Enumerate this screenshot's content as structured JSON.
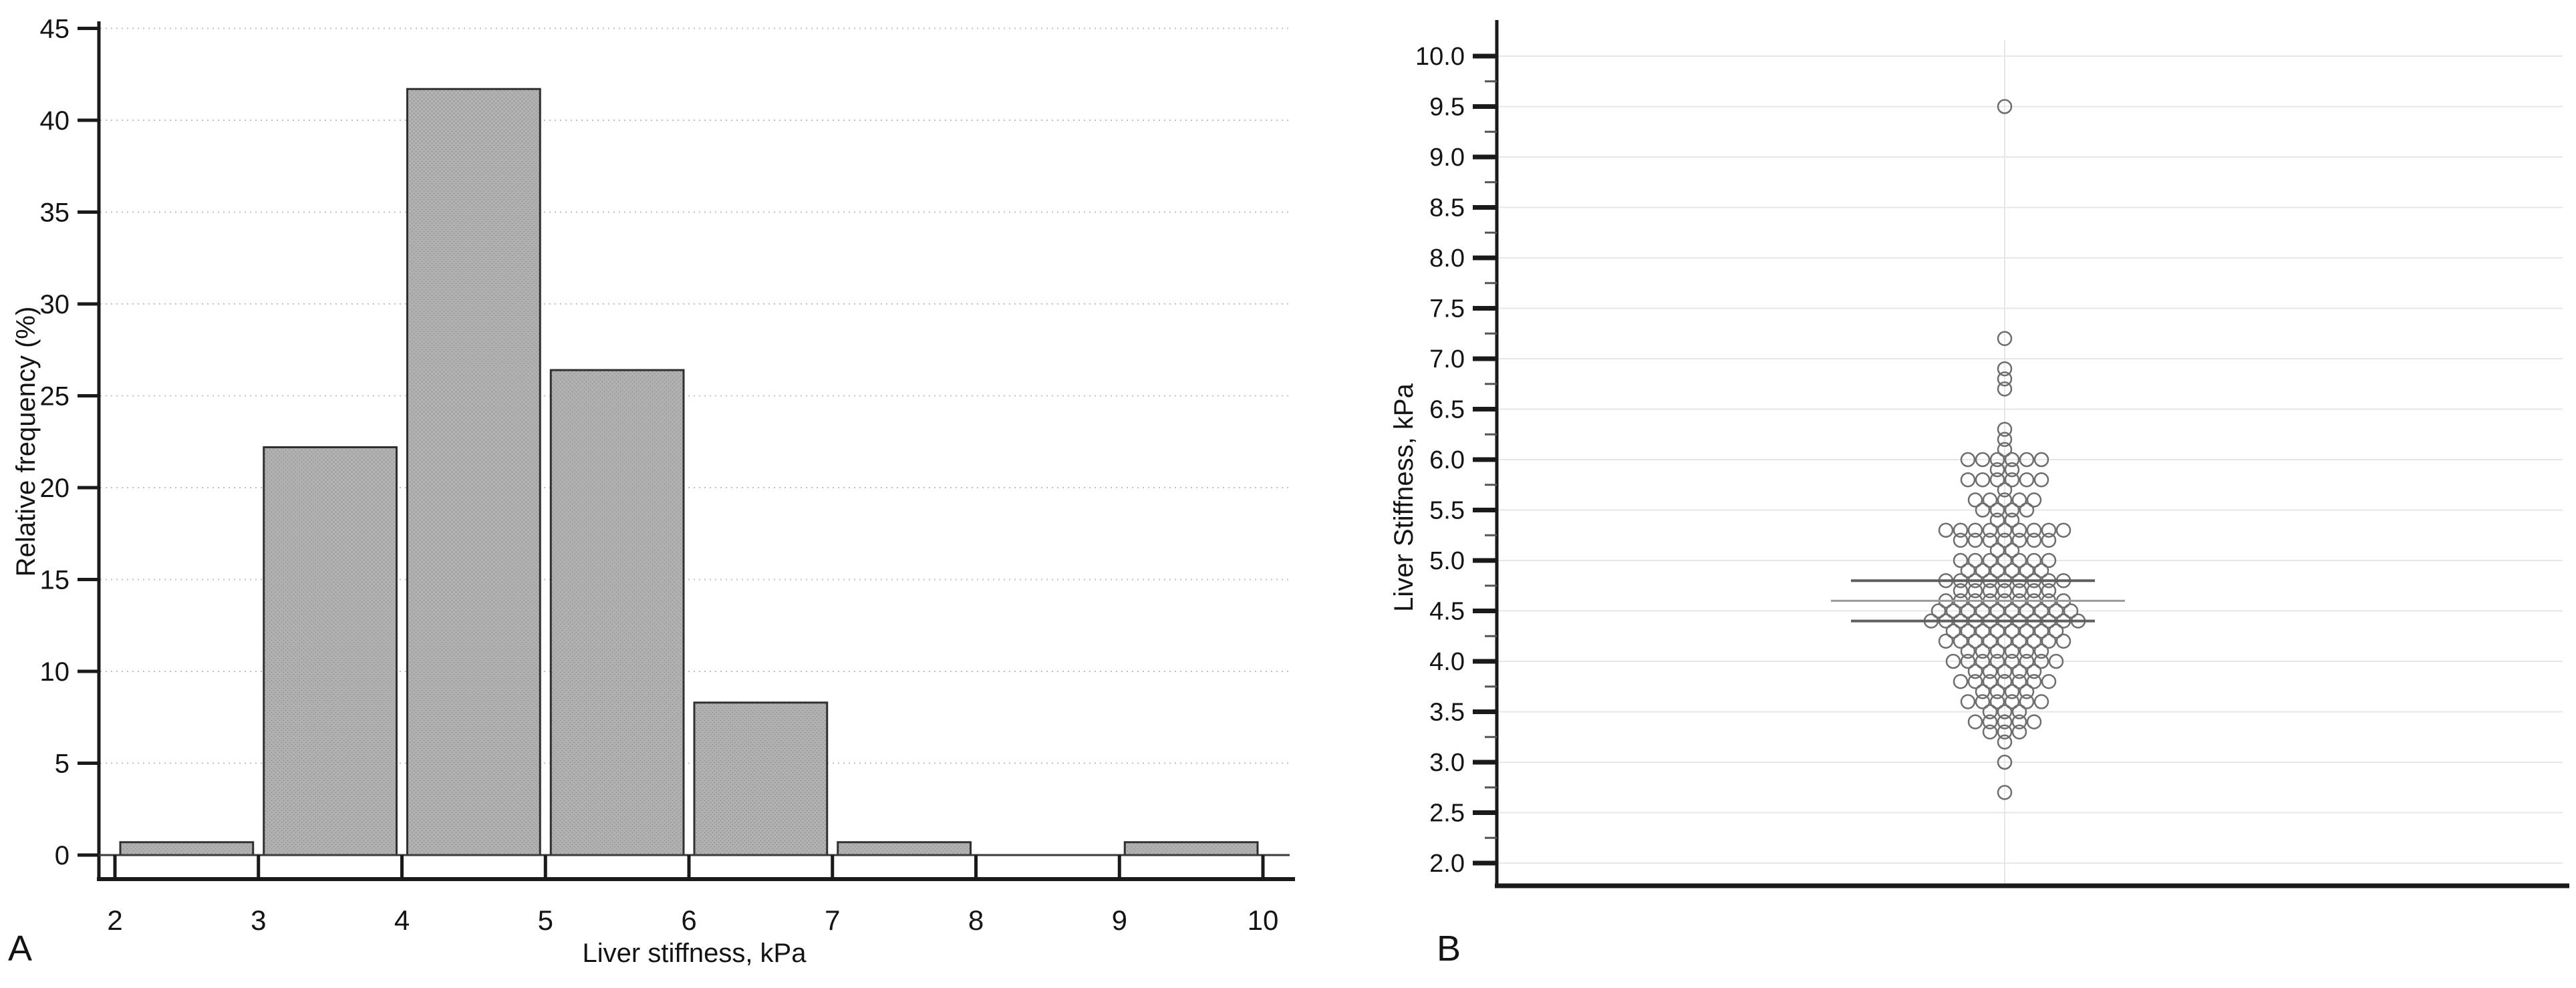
{
  "figure": {
    "background": "#ffffff",
    "text_color": "#141414",
    "axis_color": "#1a1a1a"
  },
  "panel_a": {
    "label": "A",
    "ylabel": "Relative frequency (%)",
    "xlabel": "Liver stiffness, kPa"
  },
  "panel_b": {
    "label": "B",
    "ylabel": "Liver Stiffness, kPa"
  },
  "chart_data": [
    {
      "type": "bar",
      "panel": "A",
      "title": "",
      "xlabel": "Liver stiffness, kPa",
      "ylabel": "Relative frequency (%)",
      "bin_edges": [
        2,
        3,
        4,
        5,
        6,
        7,
        8,
        9,
        10
      ],
      "values": [
        0.7,
        22.2,
        41.7,
        26.4,
        8.3,
        0.7,
        0,
        0.7
      ],
      "xticks": [
        2,
        3,
        4,
        5,
        6,
        7,
        8,
        9,
        10
      ],
      "xtick_labels": [
        "2",
        "3",
        "4",
        "5",
        "6",
        "7",
        "8",
        "9",
        "10"
      ],
      "yticks": [
        0,
        5,
        10,
        15,
        20,
        25,
        30,
        35,
        40,
        45
      ],
      "ytick_labels": [
        "0",
        "5",
        "10",
        "15",
        "20",
        "25",
        "30",
        "35",
        "40",
        "45"
      ],
      "xlim": [
        2,
        10
      ],
      "ylim": [
        0,
        45.5
      ],
      "grid": "horizontal dotted",
      "gridline_color": "#bfbfbf",
      "bar_fill": "#b2b2b2",
      "bar_stipple": "#949494",
      "bar_border": "#303030",
      "legend": "none"
    },
    {
      "type": "scatter",
      "subtype": "beeswarm",
      "panel": "B",
      "title": "",
      "xlabel": "",
      "ylabel": "Liver Stiffness, kPa",
      "ylim": [
        2.0,
        10.0
      ],
      "yticks": [
        2.0,
        2.5,
        3.0,
        3.5,
        4.0,
        4.5,
        5.0,
        5.5,
        6.0,
        6.5,
        7.0,
        7.5,
        8.0,
        8.5,
        9.0,
        9.5,
        10.0
      ],
      "ytick_labels": [
        "2.0",
        "2.5",
        "3.0",
        "3.5",
        "4.0",
        "4.5",
        "5.0",
        "5.5",
        "6.0",
        "6.5",
        "7.0",
        "7.5",
        "8.0",
        "8.5",
        "9.0",
        "9.5",
        "10.0"
      ],
      "yminor_ticks": [
        2.25,
        2.75,
        3.25,
        3.75,
        4.25,
        4.75,
        5.25,
        5.75,
        6.25,
        6.75,
        7.25,
        7.75,
        8.25,
        8.75,
        9.25,
        9.75
      ],
      "grid": "horizontal light + vertical center line",
      "gridline_color": "#e7e7e7",
      "marker": "open-circle",
      "marker_color": "#6e6e6e",
      "points": [
        {
          "value": 9.5,
          "count": 1
        },
        {
          "value": 7.2,
          "count": 1
        },
        {
          "value": 6.9,
          "count": 1
        },
        {
          "value": 6.8,
          "count": 1
        },
        {
          "value": 6.7,
          "count": 1
        },
        {
          "value": 6.3,
          "count": 1
        },
        {
          "value": 6.2,
          "count": 1
        },
        {
          "value": 6.1,
          "count": 1
        },
        {
          "value": 6.0,
          "count": 6
        },
        {
          "value": 5.9,
          "count": 2
        },
        {
          "value": 5.8,
          "count": 6
        },
        {
          "value": 5.7,
          "count": 1
        },
        {
          "value": 5.6,
          "count": 5
        },
        {
          "value": 5.5,
          "count": 4
        },
        {
          "value": 5.4,
          "count": 2
        },
        {
          "value": 5.3,
          "count": 9
        },
        {
          "value": 5.2,
          "count": 7
        },
        {
          "value": 5.1,
          "count": 2
        },
        {
          "value": 5.0,
          "count": 7
        },
        {
          "value": 4.9,
          "count": 6
        },
        {
          "value": 4.8,
          "count": 9
        },
        {
          "value": 4.7,
          "count": 7
        },
        {
          "value": 4.6,
          "count": 9
        },
        {
          "value": 4.5,
          "count": 10
        },
        {
          "value": 4.4,
          "count": 11
        },
        {
          "value": 4.3,
          "count": 8
        },
        {
          "value": 4.2,
          "count": 9
        },
        {
          "value": 4.1,
          "count": 6
        },
        {
          "value": 4.0,
          "count": 8
        },
        {
          "value": 3.9,
          "count": 5
        },
        {
          "value": 3.8,
          "count": 7
        },
        {
          "value": 3.7,
          "count": 4
        },
        {
          "value": 3.6,
          "count": 6
        },
        {
          "value": 3.5,
          "count": 3
        },
        {
          "value": 3.4,
          "count": 5
        },
        {
          "value": 3.3,
          "count": 3
        },
        {
          "value": 3.2,
          "count": 1
        },
        {
          "value": 3.0,
          "count": 1
        },
        {
          "value": 2.7,
          "count": 1
        }
      ],
      "summary_lines": [
        {
          "value": 4.8,
          "style": "dark"
        },
        {
          "value": 4.6,
          "style": "light"
        },
        {
          "value": 4.4,
          "style": "dark"
        }
      ],
      "summary_line_colors": {
        "dark": "#5f5f5f",
        "light": "#9a9a9a"
      }
    }
  ]
}
